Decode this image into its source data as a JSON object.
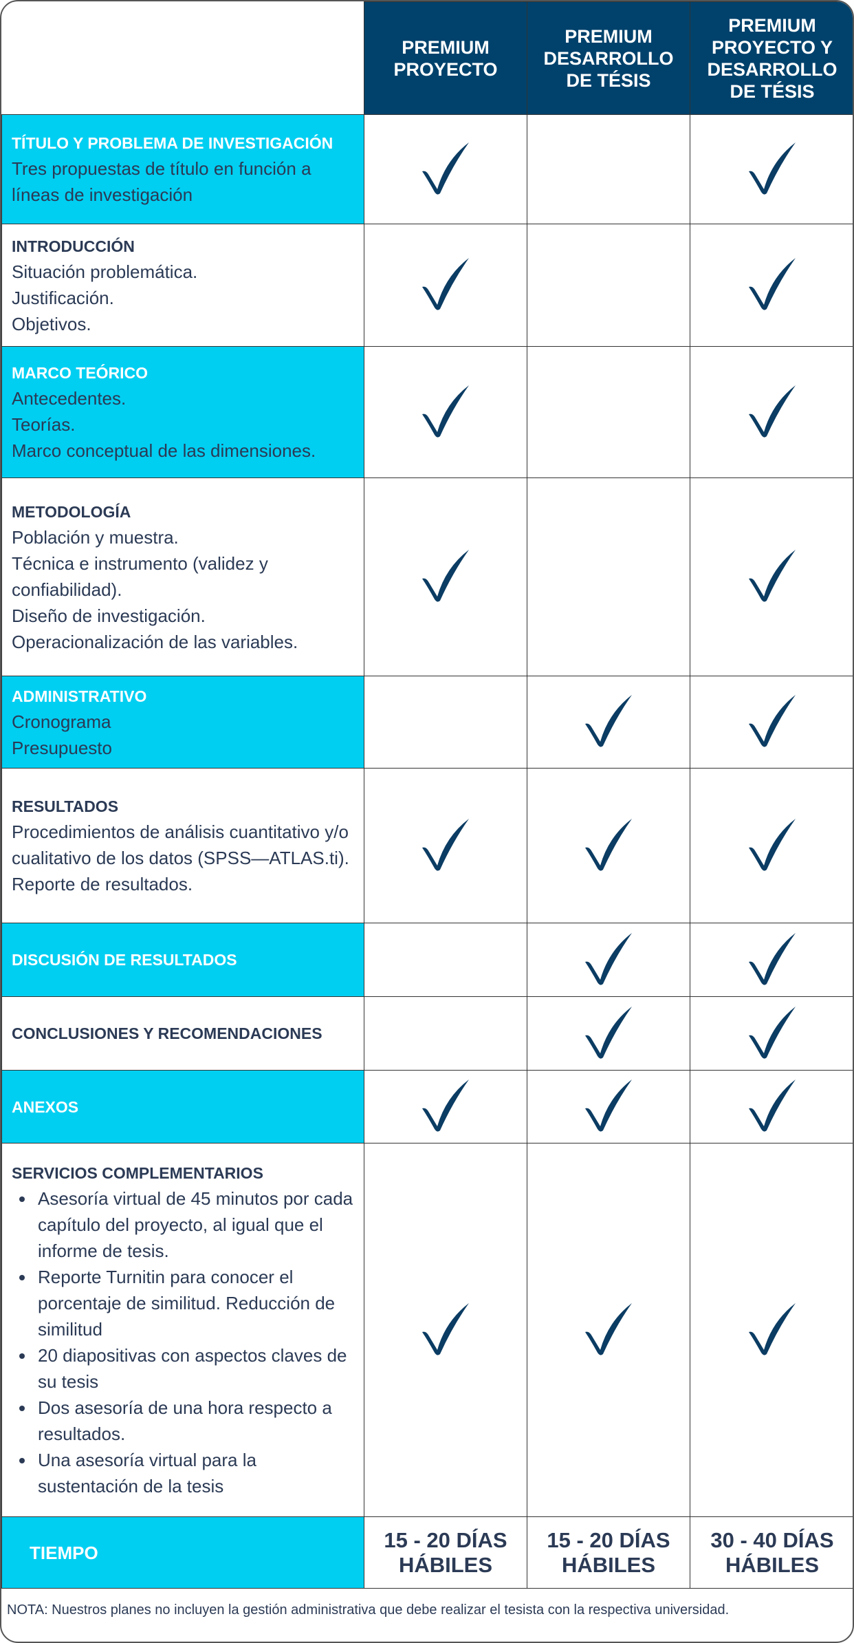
{
  "columns": [
    "PREMIUM PROYECTO",
    "PREMIUM DESARROLLO DE TÉSIS",
    "PREMIUM PROYECTO Y DESARROLLO DE TÉSIS"
  ],
  "colors": {
    "header": "#00426c",
    "highlight": "#00cff2",
    "check": "#0b3c63",
    "text": "#2b3a55"
  },
  "check_icon": "checkmark-icon",
  "rows": [
    {
      "title": "TÍTULO Y PROBLEMA DE INVESTIGACIÓN",
      "lines": [
        "Tres propuestas de título en función a líneas de investigación"
      ],
      "highlight": true,
      "checks": [
        true,
        false,
        true
      ]
    },
    {
      "title": "INTRODUCCIÓN",
      "lines": [
        "Situación problemática.",
        "Justificación.",
        "Objetivos."
      ],
      "highlight": false,
      "checks": [
        true,
        false,
        true
      ]
    },
    {
      "title": "MARCO TEÓRICO",
      "lines": [
        "Antecedentes.",
        "Teorías.",
        "Marco conceptual de las dimensiones."
      ],
      "highlight": true,
      "checks": [
        true,
        false,
        true
      ]
    },
    {
      "title": "METODOLOGÍA",
      "lines": [
        "Población y muestra.",
        "Técnica e instrumento (validez y confiabilidad).",
        "Diseño de investigación.",
        "Operacionalización de las variables."
      ],
      "highlight": false,
      "checks": [
        true,
        false,
        true
      ]
    },
    {
      "title": "ADMINISTRATIVO",
      "lines": [
        "Cronograma",
        "Presupuesto"
      ],
      "highlight": true,
      "checks": [
        false,
        true,
        true
      ]
    },
    {
      "title": "RESULTADOS",
      "lines": [
        "Procedimientos de análisis cuantitativo y/o cualitativo de los datos (SPSS—ATLAS.ti).",
        "Reporte de resultados."
      ],
      "highlight": false,
      "checks": [
        true,
        true,
        true
      ]
    },
    {
      "title": "DISCUSIÓN DE RESULTADOS",
      "lines": [],
      "highlight": true,
      "checks": [
        false,
        true,
        true
      ]
    },
    {
      "title": "CONCLUSIONES Y RECOMENDACIONES",
      "lines": [],
      "highlight": false,
      "checks": [
        false,
        true,
        true
      ]
    },
    {
      "title": "ANEXOS",
      "lines": [],
      "highlight": true,
      "checks": [
        true,
        true,
        true
      ]
    }
  ],
  "services": {
    "title": "SERVICIOS COMPLEMENTARIOS",
    "items": [
      "Asesoría virtual de 45 minutos por cada capítulo del proyecto, al igual que el informe de tesis.",
      "Reporte Turnitin para conocer el porcentaje de similitud. Reducción de similitud",
      "20 diapositivas con aspectos claves de su tesis",
      "Dos asesoría de una hora respecto a resultados.",
      "Una asesoría virtual para la sustentación de la tesis"
    ],
    "checks": [
      true,
      true,
      true
    ]
  },
  "tiempo": {
    "label": "TIEMPO",
    "values": [
      "15 - 20 DÍAS HÁBILES",
      "15 - 20 DÍAS HÁBILES",
      "30 - 40 DÍAS HÁBILES"
    ]
  },
  "nota": "NOTA: Nuestros planes no incluyen la gestión administrativa que debe realizar el tesista con la respectiva universidad."
}
